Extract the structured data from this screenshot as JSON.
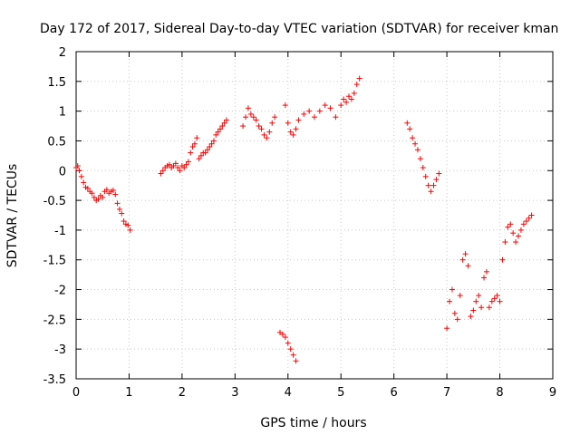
{
  "chart_data": {
    "type": "scatter",
    "title": "Day 172 of 2017, Sidereal Day-to-day VTEC variation (SDTVAR) for receiver kman",
    "xlabel": "GPS time / hours",
    "ylabel": "SDTVAR / TECUs",
    "xlim": [
      0,
      9
    ],
    "ylim": [
      -3.5,
      2
    ],
    "xticks": [
      "0",
      "1",
      "2",
      "3",
      "4",
      "5",
      "6",
      "7",
      "8",
      "9"
    ],
    "yticks": [
      "-3.5",
      "-3",
      "-2.5",
      "-2",
      "-1.5",
      "-1",
      "-0.5",
      "0",
      "0.5",
      "1",
      "1.5",
      "2"
    ],
    "grid": true,
    "marker": "+",
    "color": "#ff0000",
    "series": [
      {
        "name": "SDTVAR",
        "x": [
          0.0,
          0.03,
          0.06,
          0.1,
          0.14,
          0.18,
          0.22,
          0.26,
          0.3,
          0.34,
          0.38,
          0.42,
          0.46,
          0.5,
          0.54,
          0.58,
          0.62,
          0.66,
          0.7,
          0.74,
          0.78,
          0.82,
          0.86,
          0.9,
          0.94,
          0.98,
          1.02,
          1.6,
          1.64,
          1.68,
          1.72,
          1.76,
          1.8,
          1.84,
          1.88,
          1.92,
          1.96,
          2.0,
          2.04,
          2.08,
          2.12,
          2.16,
          2.2,
          2.24,
          2.28,
          2.32,
          2.36,
          2.4,
          2.44,
          2.48,
          2.52,
          2.56,
          2.6,
          2.64,
          2.68,
          2.72,
          2.76,
          2.8,
          2.84,
          3.15,
          3.2,
          3.25,
          3.3,
          3.35,
          3.4,
          3.45,
          3.5,
          3.55,
          3.6,
          3.65,
          3.7,
          3.75,
          3.85,
          3.9,
          3.95,
          4.0,
          4.05,
          4.1,
          4.15,
          3.95,
          4.0,
          4.05,
          4.1,
          4.15,
          4.2,
          4.3,
          4.4,
          4.5,
          4.6,
          4.7,
          4.8,
          4.9,
          5.0,
          5.05,
          5.1,
          5.15,
          5.2,
          5.25,
          5.3,
          5.35,
          6.25,
          6.3,
          6.35,
          6.4,
          6.45,
          6.5,
          6.55,
          6.6,
          6.65,
          6.7,
          6.75,
          6.8,
          6.85,
          7.0,
          7.05,
          7.1,
          7.15,
          7.2,
          7.25,
          7.3,
          7.35,
          7.4,
          7.45,
          7.5,
          7.55,
          7.6,
          7.65,
          7.7,
          7.75,
          7.8,
          7.85,
          7.9,
          7.95,
          8.0,
          8.05,
          8.1,
          8.15,
          8.2,
          8.25,
          8.3,
          8.35,
          8.4,
          8.45,
          8.5,
          8.55,
          8.6
        ],
        "y": [
          0.05,
          0.08,
          0.0,
          -0.1,
          -0.2,
          -0.28,
          -0.3,
          -0.35,
          -0.38,
          -0.45,
          -0.5,
          -0.48,
          -0.42,
          -0.45,
          -0.35,
          -0.32,
          -0.38,
          -0.35,
          -0.33,
          -0.4,
          -0.55,
          -0.65,
          -0.72,
          -0.85,
          -0.9,
          -0.92,
          -1.0,
          -0.05,
          0.0,
          0.05,
          0.08,
          0.1,
          0.05,
          0.08,
          0.12,
          0.05,
          0.0,
          0.08,
          0.05,
          0.1,
          0.15,
          0.3,
          0.4,
          0.45,
          0.55,
          0.2,
          0.25,
          0.3,
          0.3,
          0.35,
          0.4,
          0.45,
          0.5,
          0.6,
          0.65,
          0.7,
          0.75,
          0.8,
          0.85,
          0.75,
          0.9,
          1.05,
          0.95,
          0.9,
          0.85,
          0.75,
          0.7,
          0.6,
          0.55,
          0.65,
          0.8,
          0.9,
          -2.72,
          -2.75,
          -2.8,
          -2.9,
          -3.0,
          -3.1,
          -3.2,
          1.1,
          0.8,
          0.65,
          0.6,
          0.7,
          0.85,
          0.95,
          1.0,
          0.9,
          1.0,
          1.1,
          1.05,
          0.9,
          1.1,
          1.2,
          1.15,
          1.25,
          1.2,
          1.3,
          1.45,
          1.55,
          0.8,
          0.7,
          0.55,
          0.45,
          0.35,
          0.2,
          0.05,
          -0.1,
          -0.25,
          -0.35,
          -0.25,
          -0.15,
          -0.05,
          -2.65,
          -2.2,
          -2.0,
          -2.4,
          -2.5,
          -2.1,
          -1.5,
          -1.4,
          -1.6,
          -2.45,
          -2.35,
          -2.2,
          -2.1,
          -2.3,
          -1.8,
          -1.7,
          -2.3,
          -2.2,
          -2.15,
          -2.1,
          -2.2,
          -1.5,
          -1.2,
          -0.95,
          -0.9,
          -1.05,
          -1.2,
          -1.1,
          -1.0,
          -0.9,
          -0.85,
          -0.8,
          -0.75
        ]
      }
    ]
  }
}
